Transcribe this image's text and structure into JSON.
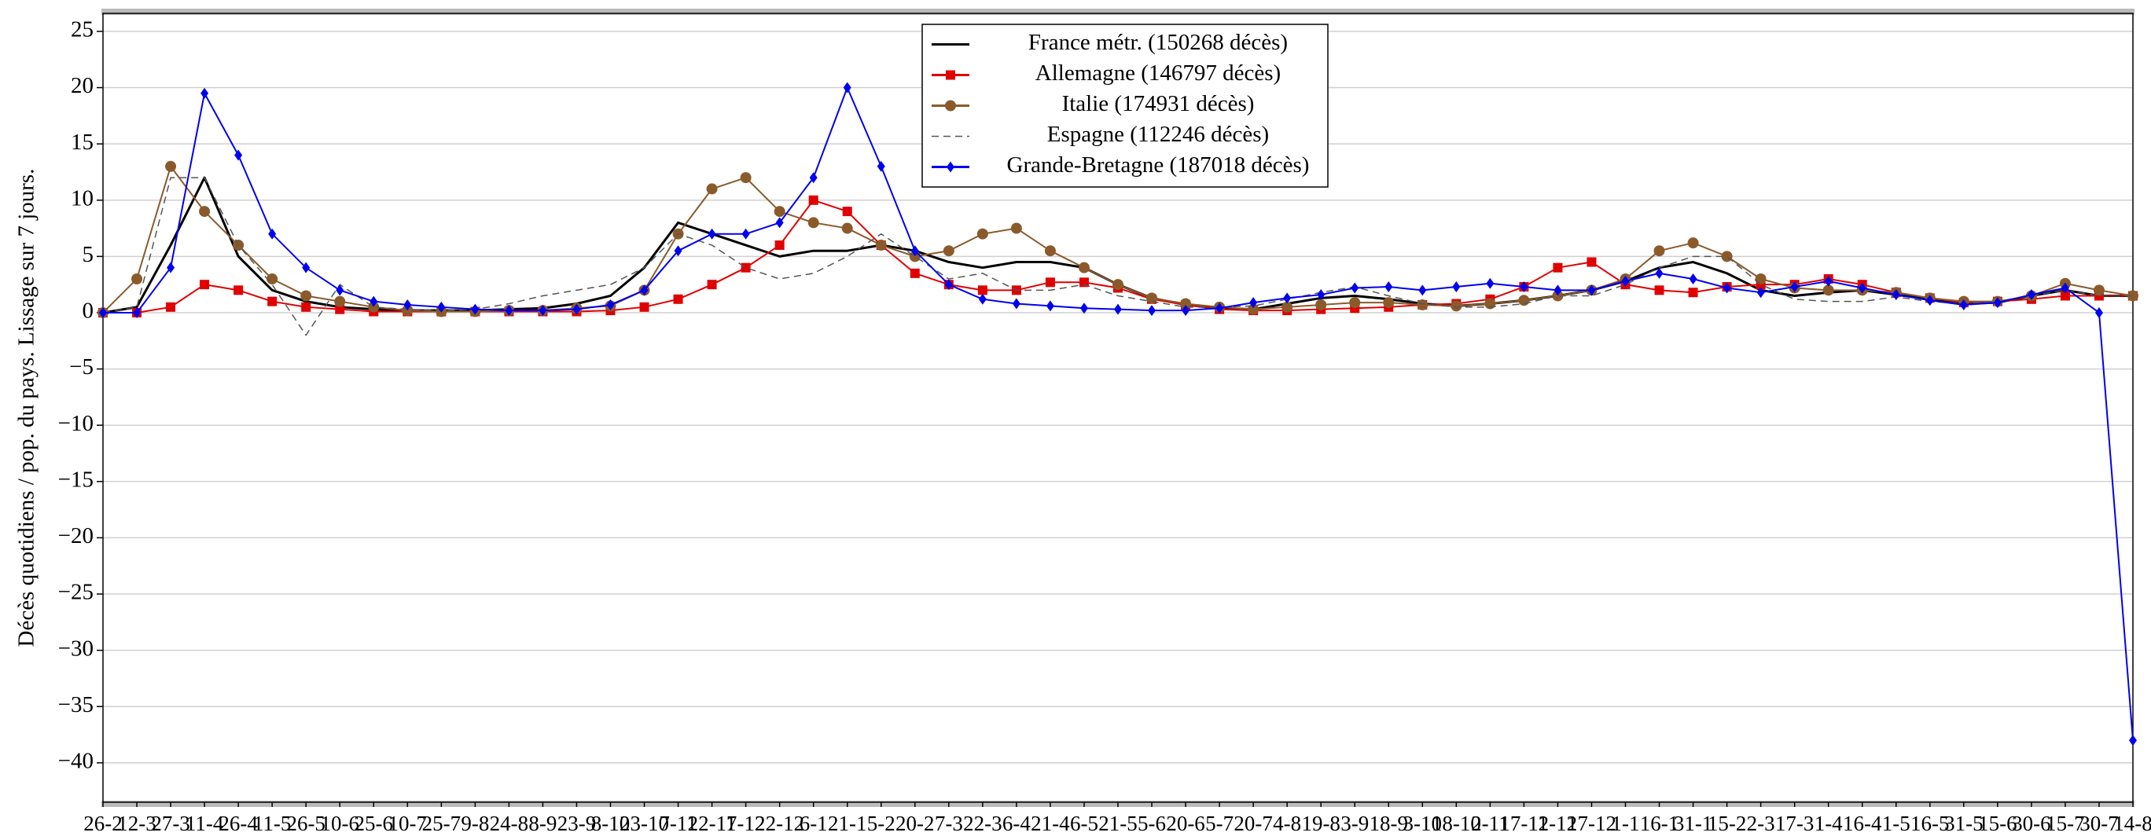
{
  "chart_data": {
    "type": "line",
    "y_label": "Décès quotidiens / pop. du pays. Lissage sur 7 jours.",
    "categories": [
      "26-2",
      "12-3",
      "27-3",
      "11-4",
      "26-4",
      "11-5",
      "26-5",
      "10-6",
      "25-6",
      "10-7",
      "25-7",
      "9-8",
      "24-8",
      "8-9",
      "23-9",
      "8-10",
      "23-10",
      "7-11",
      "22-11",
      "7-12",
      "22-12",
      "6-1",
      "21-1",
      "5-2",
      "20-2",
      "7-3",
      "22-3",
      "6-4",
      "21-4",
      "6-5",
      "21-5",
      "5-6",
      "20-6",
      "5-7",
      "20-7",
      "4-8",
      "19-8",
      "3-9",
      "18-9",
      "3-10",
      "18-10",
      "2-11",
      "17-11",
      "2-12",
      "17-12",
      "1-1",
      "16-1",
      "31-1",
      "15-2",
      "2-3",
      "17-3",
      "1-4",
      "16-4",
      "1-5",
      "16-5",
      "31-5",
      "15-6",
      "30-6",
      "15-7",
      "30-7",
      "14-8"
    ],
    "series": [
      {
        "name": "France métr. (150268 décès)",
        "color": "#000000",
        "marker": "none",
        "line_style": "solid",
        "values": [
          0,
          0.5,
          6,
          12,
          5,
          2,
          1,
          0.5,
          0.3,
          0.2,
          0.2,
          0.2,
          0.3,
          0.4,
          0.8,
          1.5,
          4,
          8,
          7,
          6,
          5,
          5.5,
          5.5,
          6,
          5.5,
          4.5,
          4,
          4.5,
          4.5,
          4,
          2.5,
          1.3,
          0.7,
          0.4,
          0.3,
          0.8,
          1.3,
          1.5,
          1.2,
          0.8,
          0.6,
          0.8,
          1.1,
          1.5,
          2,
          2.8,
          4,
          4.5,
          3.5,
          2,
          1.5,
          1.8,
          2,
          1.6,
          1.2,
          0.8,
          0.9,
          1.5,
          2,
          1.5,
          1.5
        ]
      },
      {
        "name": "Allemagne (146797 décès)",
        "color": "#e00000",
        "marker": "square",
        "line_style": "solid",
        "values": [
          0,
          0,
          0.5,
          2.5,
          2,
          1,
          0.5,
          0.3,
          0.1,
          0.1,
          0.1,
          0.1,
          0.1,
          0.1,
          0.1,
          0.2,
          0.5,
          1.2,
          2.5,
          4,
          6,
          10,
          9,
          6,
          3.5,
          2.5,
          2,
          2,
          2.7,
          2.7,
          2.2,
          1.2,
          0.7,
          0.3,
          0.2,
          0.2,
          0.3,
          0.4,
          0.5,
          0.7,
          0.8,
          1.2,
          2.3,
          4,
          4.5,
          2.5,
          2,
          1.8,
          2.3,
          2.5,
          2.5,
          3,
          2.5,
          1.8,
          1.3,
          0.9,
          1,
          1.2,
          1.5,
          1.5,
          1.5
        ]
      },
      {
        "name": "Italie (174931 décès)",
        "color": "#8b5a2b",
        "marker": "circle",
        "line_style": "solid",
        "values": [
          0,
          3,
          13,
          9,
          6,
          3,
          1.5,
          1,
          0.5,
          0.2,
          0.1,
          0.1,
          0.2,
          0.2,
          0.4,
          0.6,
          2,
          7,
          11,
          12,
          9,
          8,
          7.5,
          6,
          5,
          5.5,
          7,
          7.5,
          5.5,
          4,
          2.5,
          1.3,
          0.8,
          0.5,
          0.3,
          0.5,
          0.7,
          0.9,
          0.9,
          0.7,
          0.6,
          0.8,
          1.1,
          1.5,
          2,
          3,
          5.5,
          6.2,
          5,
          3,
          2.2,
          2,
          2,
          1.8,
          1.3,
          1,
          1,
          1.5,
          2.6,
          2,
          1.5
        ]
      },
      {
        "name": "Espagne (112246 décès)",
        "color": "#555555",
        "marker": "none",
        "line_style": "dashed",
        "values": [
          0,
          0.5,
          12,
          12,
          6,
          2.5,
          -2,
          2.5,
          0.5,
          0.3,
          0.2,
          0.3,
          0.8,
          1.5,
          2,
          2.5,
          4,
          7,
          6,
          4,
          3,
          3.5,
          5,
          7,
          5,
          3,
          3.5,
          2,
          2,
          2.5,
          1.5,
          1,
          0.5,
          0.5,
          0.6,
          1.2,
          1.8,
          2.3,
          1.5,
          0.8,
          0.5,
          0.5,
          0.8,
          1.5,
          1.5,
          2.5,
          4,
          5,
          5,
          2.5,
          1.2,
          1,
          1,
          1.4,
          1,
          0.8,
          1,
          1.5,
          2,
          1.5,
          1.5
        ]
      },
      {
        "name": "Grande-Bretagne (187018 décès)",
        "color": "#0000ee",
        "marker": "diamond",
        "line_style": "solid",
        "values": [
          0,
          0,
          4,
          19.5,
          14,
          7,
          4,
          2,
          1,
          0.7,
          0.5,
          0.3,
          0.2,
          0.2,
          0.3,
          0.7,
          2,
          5.5,
          7,
          7,
          8,
          12,
          20,
          13,
          5.5,
          2.5,
          1.2,
          0.8,
          0.6,
          0.4,
          0.3,
          0.2,
          0.2,
          0.4,
          0.9,
          1.3,
          1.6,
          2.2,
          2.3,
          2,
          2.3,
          2.6,
          2.3,
          2,
          2,
          2.8,
          3.5,
          3,
          2.2,
          1.8,
          2.3,
          2.8,
          2.2,
          1.6,
          1.1,
          0.7,
          0.9,
          1.6,
          2.2,
          0,
          -38
        ]
      }
    ],
    "ylim": [
      -43.5,
      26.6
    ],
    "yticks": [
      {
        "value": -40,
        "label": "−40"
      },
      {
        "value": -35,
        "label": "−35"
      },
      {
        "value": -30,
        "label": "−30"
      },
      {
        "value": -25,
        "label": "−25"
      },
      {
        "value": -20,
        "label": "−20"
      },
      {
        "value": -15,
        "label": "−15"
      },
      {
        "value": -10,
        "label": "−10"
      },
      {
        "value": -5,
        "label": "−5"
      },
      0,
      5,
      10,
      15,
      20,
      25
    ],
    "grid": true,
    "legend_position": "top"
  }
}
